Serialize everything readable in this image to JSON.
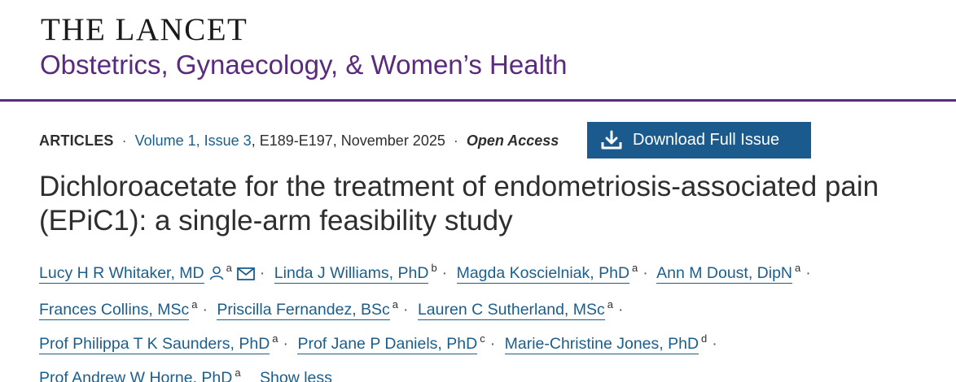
{
  "header": {
    "publisher": "THE LANCET",
    "journal": "Obstetrics, Gynaecology, & Women’s Health"
  },
  "meta": {
    "article_type": "ARTICLES",
    "issue_link": "Volume 1, Issue 3",
    "pages_date": ", E189-E197, November 2025",
    "access": "Open Access"
  },
  "download": {
    "label": "Download Full Issue",
    "icon": "download-icon"
  },
  "article": {
    "title": "Dichloroacetate for the treatment of endometriosis-associated pain (EPiC1): a single-arm feasibility study"
  },
  "authors": {
    "list": [
      {
        "name": "Lucy H R Whitaker, MD",
        "aff": "a"
      },
      {
        "name": "Linda J Williams, PhD",
        "aff": "b"
      },
      {
        "name": "Magda Koscielniak, PhD",
        "aff": "a"
      },
      {
        "name": "Ann M Doust, DipN",
        "aff": "a"
      },
      {
        "name": "Frances Collins, MSc",
        "aff": "a"
      },
      {
        "name": "Priscilla Fernandez, BSc",
        "aff": "a"
      },
      {
        "name": "Lauren C Sutherland, MSc",
        "aff": "a"
      },
      {
        "name": "Prof Philippa T K Saunders, PhD",
        "aff": "a"
      },
      {
        "name": "Prof Jane P Daniels, PhD",
        "aff": "c"
      },
      {
        "name": "Marie-Christine Jones, PhD",
        "aff": "d"
      },
      {
        "name": "Prof Andrew W Horne, PhD",
        "aff": "a"
      }
    ],
    "separator": "·",
    "show_less": "Show less",
    "person_icon": "person-icon",
    "mail_icon": "mail-icon"
  },
  "colors": {
    "brand_purple": "#5a2a7e",
    "link_blue": "#1b5e8c",
    "button_blue": "#1a5a8c"
  }
}
